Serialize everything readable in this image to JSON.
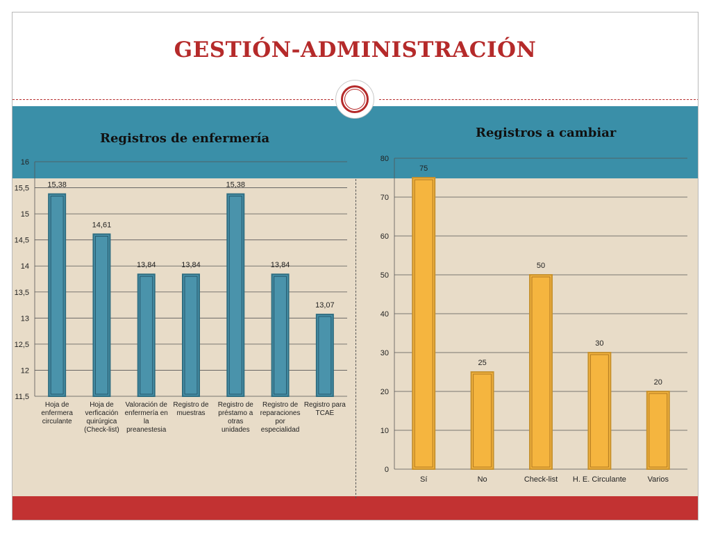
{
  "slide": {
    "title": "GESTIÓN-ADMINISTRACIÓN"
  },
  "chart_data": [
    {
      "type": "bar",
      "title": "Registros de enfermería",
      "categories": [
        [
          "Hoja de",
          "enfermera",
          "circulante"
        ],
        [
          "Hoja de",
          "verficación",
          "quirúrgica",
          "(Check-list)"
        ],
        [
          "Valoración de",
          "enfermería en",
          "la",
          "preanestesia"
        ],
        [
          "Registro de",
          "muestras"
        ],
        [
          "Registro de",
          "préstamo a",
          "otras",
          "unidades"
        ],
        [
          "Registro de",
          "reparaciones",
          "por",
          "especialidad"
        ],
        [
          "Registro para",
          "TCAE"
        ]
      ],
      "values": [
        15.38,
        14.61,
        13.84,
        13.84,
        15.38,
        13.84,
        13.07
      ],
      "data_labels": [
        "15,38",
        "14,61",
        "13,84",
        "13,84",
        "15,38",
        "13,84",
        "13,07"
      ],
      "ylim": [
        11.5,
        16
      ],
      "yticks": [
        "11,5",
        "12",
        "12,5",
        "13",
        "13,5",
        "14",
        "14,5",
        "15",
        "15,5",
        "16"
      ],
      "bar_color": "#4a93ab",
      "grid": true,
      "xlabel": "",
      "ylabel": ""
    },
    {
      "type": "bar",
      "title": "Registros a cambiar",
      "categories": [
        "Sí",
        "No",
        "Check-list",
        "H. E. Circulante",
        "Varios"
      ],
      "values": [
        75,
        25,
        50,
        30,
        20
      ],
      "data_labels": [
        "75",
        "25",
        "50",
        "30",
        "20"
      ],
      "ylim": [
        0,
        80
      ],
      "yticks": [
        "0",
        "10",
        "20",
        "30",
        "40",
        "50",
        "60",
        "70",
        "80"
      ],
      "bar_color": "#f5b53f",
      "grid": true,
      "xlabel": "",
      "ylabel": ""
    }
  ]
}
